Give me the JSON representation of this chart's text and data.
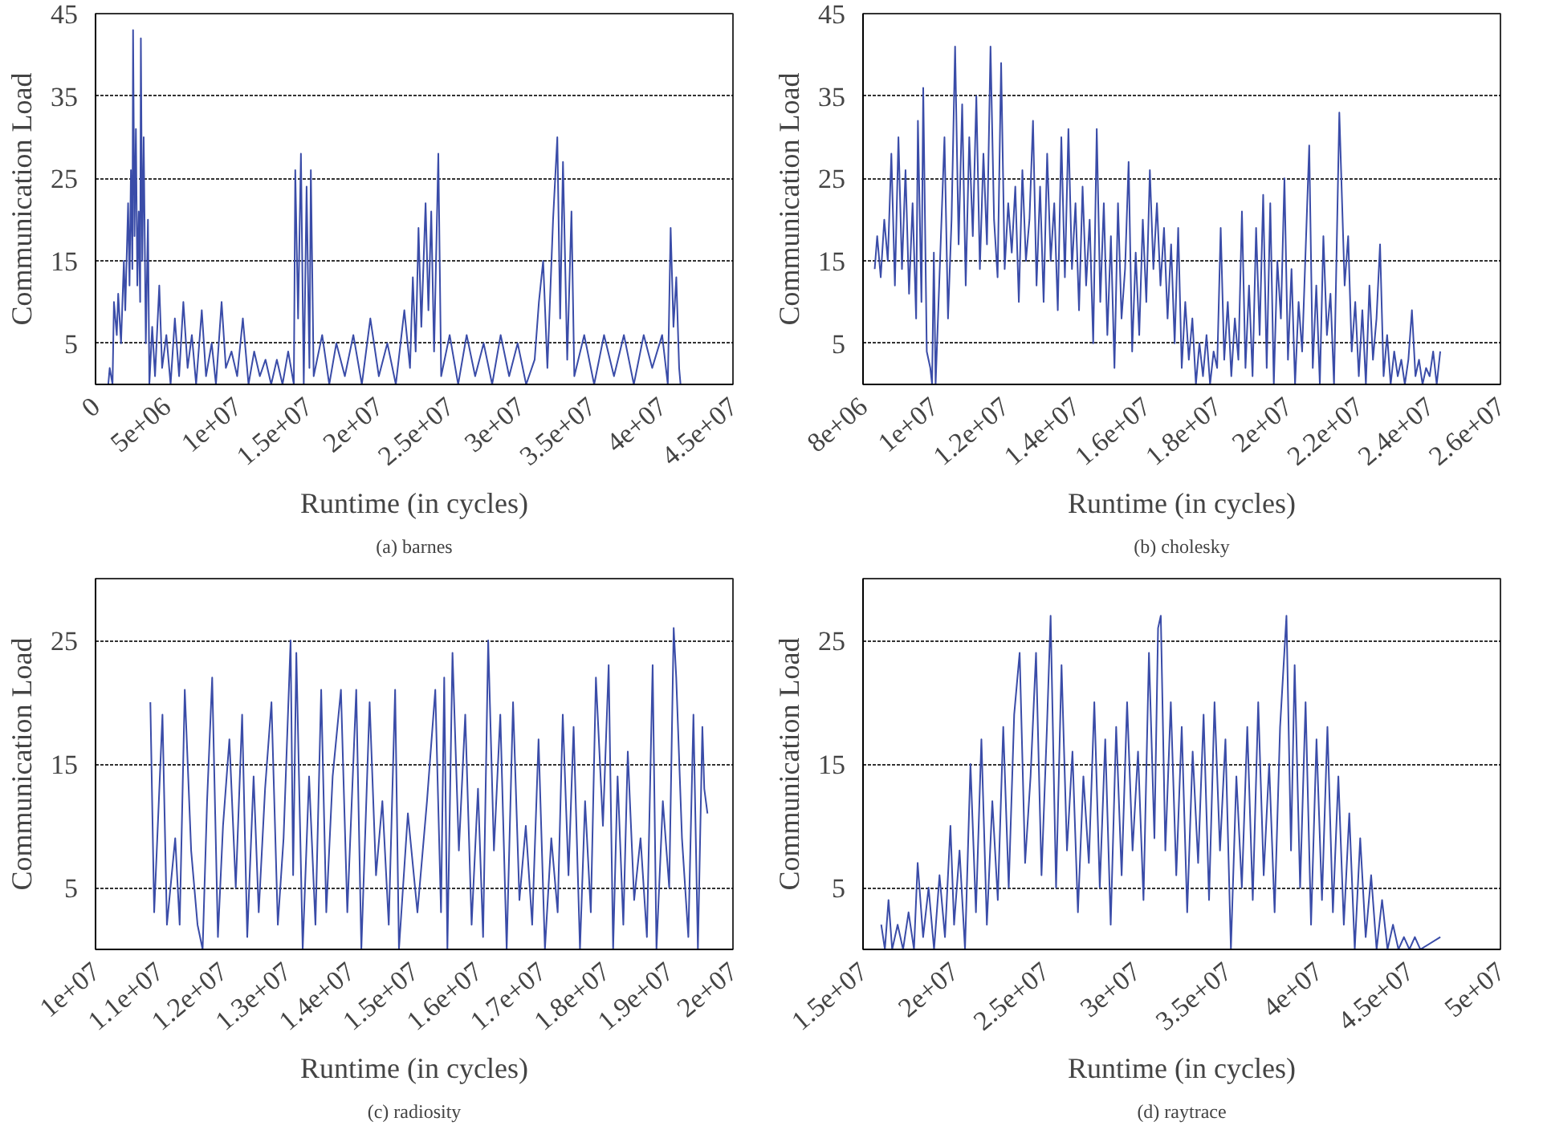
{
  "chart_data": [
    {
      "type": "line",
      "title": "(a) barnes",
      "xlabel": "Runtime (in cycles)",
      "ylabel": "Communication Load",
      "xlim": [
        0,
        45000000.0
      ],
      "ylim": [
        0,
        45
      ],
      "grid": "y",
      "xticks": [
        0,
        {
          "value": 5000000.0,
          "label": "5e+06"
        },
        {
          "value": 10000000.0,
          "label": "1e+07"
        },
        {
          "value": 15000000.0,
          "label": "1.5e+07"
        },
        {
          "value": 20000000.0,
          "label": "2e+07"
        },
        {
          "value": 25000000.0,
          "label": "2.5e+07"
        },
        {
          "value": 30000000.0,
          "label": "3e+07"
        },
        {
          "value": 35000000.0,
          "label": "3.5e+07"
        },
        {
          "value": 40000000.0,
          "label": "4e+07"
        },
        {
          "value": 45000000.0,
          "label": "4.5e+07"
        }
      ],
      "yticks": [
        5,
        15,
        25,
        35,
        45
      ],
      "series": [
        {
          "color": "#3a4ca8",
          "x": [
            900000.0,
            1000000.0,
            1200000.0,
            1300000.0,
            1500000.0,
            1600000.0,
            1800000.0,
            2000000.0,
            2100000.0,
            2300000.0,
            2400000.0,
            2500000.0,
            2600000.0,
            2650000.0,
            2750000.0,
            2850000.0,
            2950000.0,
            3050000.0,
            3150000.0,
            3200000.0,
            3300000.0,
            3400000.0,
            3550000.0,
            3700000.0,
            3800000.0,
            4000000.0,
            4200000.0,
            4500000.0,
            4700000.0,
            5000000.0,
            5300000.0,
            5600000.0,
            5900000.0,
            6200000.0,
            6500000.0,
            6800000.0,
            7100000.0,
            7500000.0,
            7800000.0,
            8200000.0,
            8500000.0,
            8900000.0,
            9200000.0,
            9600000.0,
            10000000.0,
            10400000.0,
            10800000.0,
            11200000.0,
            11600000.0,
            12000000.0,
            12400000.0,
            12800000.0,
            13200000.0,
            13600000.0,
            14000000.0,
            14100000.0,
            14300000.0,
            14500000.0,
            14700000.0,
            14900000.0,
            15100000.0,
            15200000.0,
            15400000.0,
            16000000.0,
            16500000.0,
            17000000.0,
            17600000.0,
            18200000.0,
            18800000.0,
            19400000.0,
            20000000.0,
            20600000.0,
            21200000.0,
            21800000.0,
            22200000.0,
            22400000.0,
            22600000.0,
            22800000.0,
            23000000.0,
            23300000.0,
            23500000.0,
            23700000.0,
            23900000.0,
            24200000.0,
            24400000.0,
            25000000.0,
            25600000.0,
            26200000.0,
            26800000.0,
            27400000.0,
            28000000.0,
            28600000.0,
            29200000.0,
            29800000.0,
            30400000.0,
            31000000.0,
            31300000.0,
            31600000.0,
            31900000.0,
            32300000.0,
            32600000.0,
            32800000.0,
            33000000.0,
            33300000.0,
            33600000.0,
            33800000.0,
            34500000.0,
            35200000.0,
            35900000.0,
            36600000.0,
            37300000.0,
            38000000.0,
            38700000.0,
            39300000.0,
            40000000.0,
            40400000.0,
            40600000.0,
            40800000.0,
            41000000.0,
            41200000.0,
            41300000.0
          ],
          "values": [
            0,
            2,
            0,
            10,
            6,
            11,
            5,
            15,
            9,
            22,
            12,
            26,
            14,
            43,
            18,
            31,
            12,
            21,
            10,
            42,
            15,
            30,
            5,
            20,
            0,
            7,
            1,
            12,
            2,
            6,
            0,
            8,
            1,
            10,
            2,
            6,
            0,
            9,
            1,
            5,
            0,
            10,
            2,
            4,
            1,
            8,
            0,
            4,
            1,
            3,
            0,
            3,
            0,
            4,
            0,
            26,
            8,
            28,
            0,
            24,
            2,
            26,
            1,
            6,
            0,
            5,
            1,
            6,
            0,
            8,
            1,
            5,
            0,
            9,
            2,
            13,
            4,
            19,
            7,
            22,
            9,
            21,
            4,
            28,
            1,
            6,
            0,
            6,
            1,
            5,
            0,
            6,
            1,
            5,
            0,
            3,
            10,
            15,
            2,
            20,
            30,
            8,
            27,
            3,
            21,
            1,
            6,
            0,
            6,
            1,
            6,
            0,
            6,
            2,
            6,
            0,
            19,
            7,
            13,
            2,
            0
          ]
        }
      ]
    },
    {
      "type": "line",
      "title": "(b) cholesky",
      "xlabel": "Runtime (in cycles)",
      "ylabel": "Communication Load",
      "xlim": [
        8000000.0,
        26000000.0
      ],
      "ylim": [
        0,
        45
      ],
      "grid": "y",
      "xticks": [
        {
          "value": 8000000.0,
          "label": "8e+06"
        },
        {
          "value": 10000000.0,
          "label": "1e+07"
        },
        {
          "value": 12000000.0,
          "label": "1.2e+07"
        },
        {
          "value": 14000000.0,
          "label": "1.4e+07"
        },
        {
          "value": 16000000.0,
          "label": "1.6e+07"
        },
        {
          "value": 18000000.0,
          "label": "1.8e+07"
        },
        {
          "value": 20000000.0,
          "label": "2e+07"
        },
        {
          "value": 22000000.0,
          "label": "2.2e+07"
        },
        {
          "value": 24000000.0,
          "label": "2.4e+07"
        },
        {
          "value": 26000000.0,
          "label": "2.6e+07"
        }
      ],
      "yticks": [
        5,
        15,
        25,
        35,
        45
      ],
      "series": [
        {
          "color": "#3a4ca8",
          "x": [
            8330000.0,
            8400000.0,
            8500000.0,
            8600000.0,
            8700000.0,
            8800000.0,
            8900000.0,
            9000000.0,
            9100000.0,
            9200000.0,
            9300000.0,
            9400000.0,
            9500000.0,
            9550000.0,
            9650000.0,
            9700000.0,
            9800000.0,
            9900000.0,
            9950000.0,
            10000000.0,
            10050000.0,
            10200000.0,
            10300000.0,
            10400000.0,
            10500000.0,
            10600000.0,
            10700000.0,
            10800000.0,
            10900000.0,
            11000000.0,
            11100000.0,
            11200000.0,
            11300000.0,
            11400000.0,
            11500000.0,
            11600000.0,
            11700000.0,
            11800000.0,
            11900000.0,
            12000000.0,
            12100000.0,
            12200000.0,
            12300000.0,
            12400000.0,
            12500000.0,
            12600000.0,
            12700000.0,
            12800000.0,
            12900000.0,
            13000000.0,
            13100000.0,
            13200000.0,
            13300000.0,
            13400000.0,
            13500000.0,
            13600000.0,
            13700000.0,
            13800000.0,
            13900000.0,
            14000000.0,
            14100000.0,
            14200000.0,
            14300000.0,
            14400000.0,
            14500000.0,
            14600000.0,
            14700000.0,
            14800000.0,
            14900000.0,
            15000000.0,
            15100000.0,
            15200000.0,
            15300000.0,
            15400000.0,
            15500000.0,
            15600000.0,
            15700000.0,
            15800000.0,
            15900000.0,
            16000000.0,
            16100000.0,
            16200000.0,
            16300000.0,
            16400000.0,
            16500000.0,
            16600000.0,
            16700000.0,
            16800000.0,
            16900000.0,
            17000000.0,
            17100000.0,
            17200000.0,
            17300000.0,
            17400000.0,
            17500000.0,
            17600000.0,
            17700000.0,
            17800000.0,
            17900000.0,
            18000000.0,
            18100000.0,
            18200000.0,
            18300000.0,
            18400000.0,
            18500000.0,
            18600000.0,
            18700000.0,
            18800000.0,
            18900000.0,
            19000000.0,
            19100000.0,
            19200000.0,
            19300000.0,
            19400000.0,
            19500000.0,
            19600000.0,
            19700000.0,
            19800000.0,
            19900000.0,
            20000000.0,
            20100000.0,
            20200000.0,
            20300000.0,
            20400000.0,
            20600000.0,
            20700000.0,
            20800000.0,
            20900000.0,
            21000000.0,
            21100000.0,
            21200000.0,
            21300000.0,
            21450000.0,
            21600000.0,
            21700000.0,
            21800000.0,
            21900000.0,
            22000000.0,
            22100000.0,
            22200000.0,
            22300000.0,
            22400000.0,
            22500000.0,
            22600000.0,
            22700000.0,
            22800000.0,
            22900000.0,
            23000000.0,
            23100000.0,
            23200000.0,
            23300000.0,
            23400000.0,
            23500000.0,
            23600000.0,
            23700000.0,
            23800000.0,
            23900000.0,
            24000000.0,
            24100000.0,
            24200000.0,
            24300000.0
          ],
          "values": [
            14,
            18,
            13,
            20,
            15,
            28,
            12,
            30,
            14,
            26,
            11,
            22,
            8,
            32,
            10,
            36,
            4,
            2,
            0,
            16,
            0,
            18,
            30,
            8,
            20,
            41,
            17,
            34,
            12,
            30,
            18,
            35,
            14,
            28,
            17,
            41,
            20,
            13,
            39,
            14,
            22,
            16,
            24,
            10,
            26,
            15,
            20,
            32,
            12,
            24,
            10,
            28,
            15,
            22,
            9,
            30,
            13,
            31,
            14,
            22,
            9,
            24,
            12,
            20,
            5,
            31,
            10,
            22,
            6,
            18,
            2,
            22,
            8,
            14,
            27,
            4,
            16,
            6,
            20,
            10,
            26,
            14,
            22,
            12,
            19,
            8,
            17,
            5,
            19,
            2,
            10,
            3,
            8,
            0,
            5,
            1,
            6,
            0,
            4,
            2,
            19,
            3,
            10,
            1,
            8,
            3,
            21,
            2,
            12,
            1,
            19,
            6,
            23,
            2,
            22,
            0,
            15,
            8,
            25,
            3,
            14,
            0,
            10,
            4,
            29,
            2,
            12,
            0,
            18,
            6,
            11,
            0,
            33,
            12,
            18,
            4,
            10,
            1,
            9,
            0,
            12,
            3,
            8,
            17,
            1,
            6,
            0,
            4,
            1,
            3,
            0,
            3,
            9,
            1,
            3,
            0,
            2,
            1,
            4,
            0,
            4
          ]
        }
      ]
    },
    {
      "type": "line",
      "title": "(c) radiosity",
      "xlabel": "Runtime (in cycles)",
      "ylabel": "Communication Load",
      "xlim": [
        10000000.0,
        20000000.0
      ],
      "ylim": [
        0,
        30
      ],
      "grid": "y",
      "xticks": [
        {
          "value": 10000000.0,
          "label": "1e+07"
        },
        {
          "value": 11000000.0,
          "label": "1.1e+07"
        },
        {
          "value": 12000000.0,
          "label": "1.2e+07"
        },
        {
          "value": 13000000.0,
          "label": "1.3e+07"
        },
        {
          "value": 14000000.0,
          "label": "1.4e+07"
        },
        {
          "value": 15000000.0,
          "label": "1.5e+07"
        },
        {
          "value": 16000000.0,
          "label": "1.6e+07"
        },
        {
          "value": 17000000.0,
          "label": "1.7e+07"
        },
        {
          "value": 18000000.0,
          "label": "1.8e+07"
        },
        {
          "value": 19000000.0,
          "label": "1.9e+07"
        },
        {
          "value": 20000000.0,
          "label": "2e+07"
        }
      ],
      "yticks": [
        5,
        15,
        25
      ],
      "series": [
        {
          "color": "#3a4ca8",
          "x": [
            10860000.0,
            10920000.0,
            11050000.0,
            11120000.0,
            11250000.0,
            11320000.0,
            11400000.0,
            11500000.0,
            11600000.0,
            11680000.0,
            11750000.0,
            11830000.0,
            11920000.0,
            12000000.0,
            12100000.0,
            12200000.0,
            12300000.0,
            12380000.0,
            12480000.0,
            12560000.0,
            12660000.0,
            12760000.0,
            12860000.0,
            12950000.0,
            13060000.0,
            13100000.0,
            13150000.0,
            13250000.0,
            13350000.0,
            13450000.0,
            13540000.0,
            13620000.0,
            13720000.0,
            13850000.0,
            13950000.0,
            14090000.0,
            14170000.0,
            14300000.0,
            14400000.0,
            14500000.0,
            14600000.0,
            14700000.0,
            14760000.0,
            14900000.0,
            15050000.0,
            15200000.0,
            15330000.0,
            15420000.0,
            15470000.0,
            15520000.0,
            15600000.0,
            15700000.0,
            15800000.0,
            15900000.0,
            16000000.0,
            16080000.0,
            16160000.0,
            16250000.0,
            16350000.0,
            16450000.0,
            16550000.0,
            16650000.0,
            16750000.0,
            16850000.0,
            16950000.0,
            17050000.0,
            17150000.0,
            17250000.0,
            17330000.0,
            17420000.0,
            17500000.0,
            17600000.0,
            17680000.0,
            17770000.0,
            17850000.0,
            17960000.0,
            18050000.0,
            18120000.0,
            18190000.0,
            18280000.0,
            18350000.0,
            18450000.0,
            18550000.0,
            18650000.0,
            18740000.0,
            18800000.0,
            18900000.0,
            19000000.0,
            19070000.0,
            19110000.0,
            19200000.0,
            19300000.0,
            19380000.0,
            19450000.0,
            19520000.0,
            19550000.0,
            19600000.0
          ],
          "values": [
            20,
            3,
            19,
            2,
            9,
            2,
            21,
            8,
            2,
            0,
            12,
            22,
            1,
            10,
            17,
            5,
            19,
            1,
            14,
            3,
            13,
            20,
            2,
            9,
            25,
            6,
            24,
            0,
            14,
            2,
            21,
            3,
            14,
            21,
            3,
            21,
            0,
            20,
            6,
            12,
            2,
            21,
            0,
            11,
            3,
            12,
            21,
            3,
            22,
            0,
            24,
            8,
            19,
            2,
            13,
            1,
            25,
            8,
            19,
            0,
            20,
            4,
            10,
            2,
            17,
            0,
            9,
            3,
            19,
            6,
            18,
            0,
            12,
            3,
            22,
            10,
            23,
            0,
            14,
            2,
            16,
            4,
            9,
            1,
            23,
            0,
            12,
            5,
            26,
            22,
            9,
            1,
            19,
            0,
            18,
            13,
            11
          ]
        }
      ]
    },
    {
      "type": "line",
      "title": "(d) raytrace",
      "xlabel": "Runtime (in cycles)",
      "ylabel": "Communication Load",
      "xlim": [
        15000000.0,
        50000000.0
      ],
      "ylim": [
        0,
        30
      ],
      "grid": "y",
      "xticks": [
        {
          "value": 15000000.0,
          "label": "1.5e+07"
        },
        {
          "value": 20000000.0,
          "label": "2e+07"
        },
        {
          "value": 25000000.0,
          "label": "2.5e+07"
        },
        {
          "value": 30000000.0,
          "label": "3e+07"
        },
        {
          "value": 35000000.0,
          "label": "3.5e+07"
        },
        {
          "value": 40000000.0,
          "label": "4e+07"
        },
        {
          "value": 45000000.0,
          "label": "4.5e+07"
        },
        {
          "value": 50000000.0,
          "label": "5e+07"
        }
      ],
      "yticks": [
        5,
        15,
        25
      ],
      "series": [
        {
          "color": "#3a4ca8",
          "x": [
            16000000.0,
            16200000.0,
            16400000.0,
            16600000.0,
            16900000.0,
            17200000.0,
            17500000.0,
            17800000.0,
            18000000.0,
            18300000.0,
            18600000.0,
            18900000.0,
            19200000.0,
            19500000.0,
            19800000.0,
            20000000.0,
            20300000.0,
            20600000.0,
            20900000.0,
            21200000.0,
            21500000.0,
            21800000.0,
            22100000.0,
            22400000.0,
            22700000.0,
            23000000.0,
            23300000.0,
            23600000.0,
            23900000.0,
            24200000.0,
            24500000.0,
            24800000.0,
            25100000.0,
            25300000.0,
            25600000.0,
            25900000.0,
            26200000.0,
            26500000.0,
            26800000.0,
            27100000.0,
            27400000.0,
            27700000.0,
            28000000.0,
            28300000.0,
            28600000.0,
            28900000.0,
            29200000.0,
            29500000.0,
            29800000.0,
            30100000.0,
            30400000.0,
            30700000.0,
            31000000.0,
            31200000.0,
            31350000.0,
            31600000.0,
            31900000.0,
            32200000.0,
            32500000.0,
            32800000.0,
            33100000.0,
            33400000.0,
            33700000.0,
            34000000.0,
            34300000.0,
            34600000.0,
            34900000.0,
            35200000.0,
            35500000.0,
            35800000.0,
            36100000.0,
            36400000.0,
            36700000.0,
            37000000.0,
            37300000.0,
            37600000.0,
            37900000.0,
            38250000.0,
            38500000.0,
            38700000.0,
            39000000.0,
            39300000.0,
            39600000.0,
            39900000.0,
            40200000.0,
            40500000.0,
            40800000.0,
            41100000.0,
            41400000.0,
            41700000.0,
            42000000.0,
            42300000.0,
            42600000.0,
            42900000.0,
            43200000.0,
            43500000.0,
            43800000.0,
            44100000.0,
            44400000.0,
            44700000.0,
            45000000.0,
            45300000.0,
            45600000.0,
            46700000.0
          ],
          "values": [
            2,
            0,
            4,
            0,
            2,
            0,
            3,
            0,
            7,
            1,
            5,
            0,
            6,
            1,
            10,
            2,
            8,
            0,
            15,
            3,
            17,
            2,
            12,
            4,
            18,
            5,
            19,
            24,
            7,
            14,
            24,
            6,
            18,
            27,
            5,
            23,
            8,
            16,
            3,
            14,
            7,
            20,
            5,
            17,
            2,
            18,
            6,
            20,
            8,
            16,
            4,
            24,
            9,
            26,
            27,
            8,
            20,
            6,
            18,
            3,
            16,
            7,
            19,
            4,
            20,
            8,
            17,
            0,
            14,
            5,
            18,
            4,
            20,
            6,
            15,
            3,
            18,
            27,
            8,
            23,
            5,
            20,
            2,
            17,
            4,
            18,
            3,
            14,
            2,
            11,
            0,
            9,
            1,
            6,
            0,
            4,
            0,
            2,
            0,
            1,
            0,
            1,
            0,
            1
          ]
        }
      ]
    }
  ]
}
